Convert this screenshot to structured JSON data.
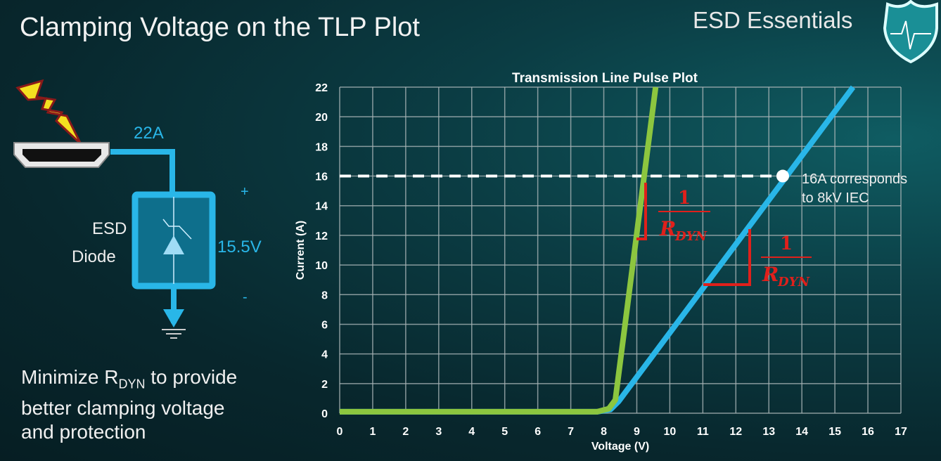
{
  "slide": {
    "title": "Clamping Voltage on the TLP Plot",
    "brand": "ESD Essentials",
    "note_prefix": "Minimize R",
    "note_sub": "DYN",
    "note_line1_rest": " to provide",
    "note_line2": "better clamping voltage",
    "note_line3": "and protection"
  },
  "circuit": {
    "current_label": "22A",
    "device_label_1": "ESD",
    "device_label_2": "Diode",
    "voltage_label": "15.5V",
    "plus": "+",
    "minus": "-",
    "icons": [
      "lightning-bolt-icon",
      "hdmi-port-icon",
      "tvs-diode-icon",
      "ground-icon"
    ],
    "wire_color": "#29b6e8"
  },
  "chart_data": {
    "type": "line",
    "title": "Transmission Line Pulse Plot",
    "xlabel": "Voltage (V)",
    "ylabel": "Current (A)",
    "xlim": [
      0,
      17
    ],
    "ylim": [
      0,
      22
    ],
    "xticks": [
      "0",
      "1",
      "2",
      "3",
      "4",
      "5",
      "6",
      "7",
      "8",
      "9",
      "10",
      "11",
      "12",
      "13",
      "14",
      "15",
      "16",
      "17"
    ],
    "yticks": [
      "0",
      "2",
      "4",
      "6",
      "8",
      "10",
      "12",
      "14",
      "16",
      "18",
      "20",
      "22"
    ],
    "grid": true,
    "series": [
      {
        "color": "#29b6e8",
        "x": [
          0,
          7.8,
          8.2,
          8.45,
          15.55
        ],
        "y": [
          0.1,
          0.1,
          0.25,
          0.8,
          22
        ]
      },
      {
        "color": "#8cc63f",
        "x": [
          0,
          7.8,
          8.15,
          8.35,
          9.57
        ],
        "y": [
          0.1,
          0.1,
          0.3,
          0.9,
          22
        ]
      }
    ],
    "reference_line": {
      "y": 16,
      "style": "dashed",
      "color": "#ffffff"
    },
    "marker": {
      "x": 13.42,
      "y": 16
    },
    "annotations": {
      "callout_line1": "16A corresponds",
      "callout_line2": "to 8kV IEC",
      "slope_numerator": "1",
      "slope_denominator": "R",
      "slope_denominator_sub": "DYN",
      "slope_color": "#e0201b"
    }
  }
}
